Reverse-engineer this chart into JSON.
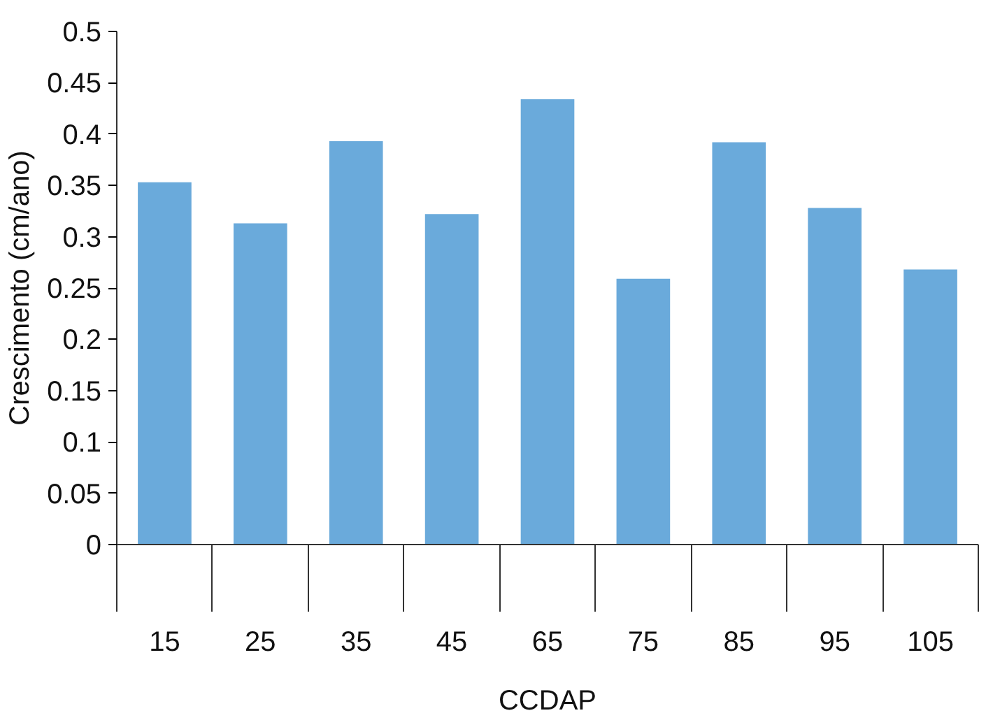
{
  "chart_data": {
    "type": "bar",
    "xlabel": "CCDAP",
    "ylabel": "Crescimento (cm/ano)",
    "categories": [
      "15",
      "25",
      "35",
      "45",
      "65",
      "75",
      "85",
      "95",
      "105"
    ],
    "values": [
      0.353,
      0.313,
      0.393,
      0.322,
      0.434,
      0.259,
      0.392,
      0.328,
      0.268
    ],
    "color": "#6aaadb",
    "ylim": [
      0,
      0.5
    ],
    "yticks": [
      0,
      0.05,
      0.1,
      0.15,
      0.2,
      0.25,
      0.3,
      0.35,
      0.4,
      0.45,
      0.5
    ],
    "grid": false
  }
}
